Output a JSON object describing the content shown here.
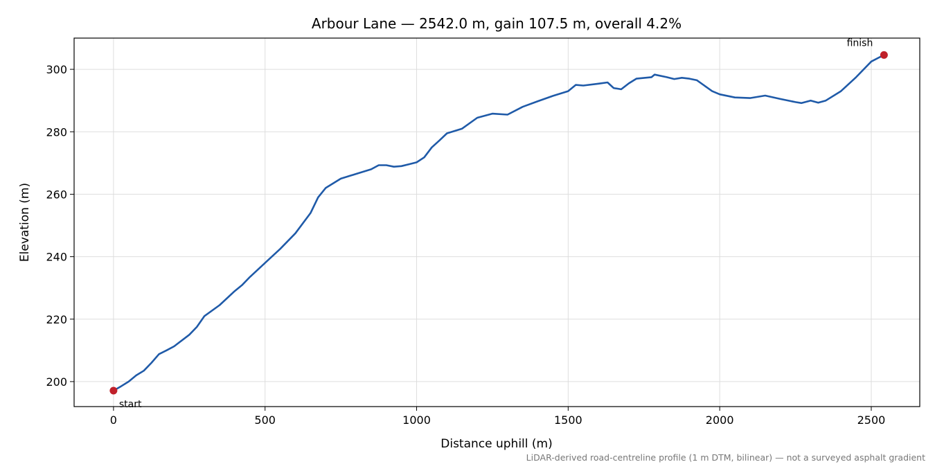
{
  "chart_data": {
    "type": "line",
    "title": "Arbour Lane — 2542.0 m, gain 107.5 m, overall 4.2%",
    "xlabel": "Distance uphill (m)",
    "ylabel": "Elevation (m)",
    "xlim": [
      -130,
      2660
    ],
    "ylim": [
      192,
      310
    ],
    "xticks": [
      0,
      500,
      1000,
      1500,
      2000,
      2500
    ],
    "yticks": [
      200,
      220,
      240,
      260,
      280,
      300
    ],
    "grid": true,
    "footnote": "LiDAR-derived road-centreline profile (1 m DTM, bilinear) — not a surveyed asphalt gradient",
    "line_color": "#1f5aa8",
    "marker_color": "#c0202a",
    "series": [
      {
        "x": [
          0,
          25,
          50,
          75,
          100,
          125,
          150,
          175,
          200,
          250,
          275,
          300,
          350,
          400,
          425,
          450,
          500,
          550,
          600,
          650,
          675,
          700,
          750,
          800,
          850,
          875,
          900,
          925,
          950,
          975,
          1000,
          1025,
          1050,
          1075,
          1100,
          1150,
          1200,
          1250,
          1300,
          1350,
          1400,
          1450,
          1500,
          1525,
          1550,
          1600,
          1630,
          1650,
          1675,
          1700,
          1725,
          1775,
          1785,
          1825,
          1850,
          1875,
          1900,
          1925,
          1975,
          2000,
          2050,
          2100,
          2150,
          2200,
          2250,
          2270,
          2300,
          2325,
          2350,
          2400,
          2450,
          2500,
          2542
        ],
        "y": [
          197.1,
          198.5,
          200.0,
          202.0,
          203.5,
          206.0,
          208.8,
          210.0,
          211.3,
          215.0,
          217.5,
          221.0,
          224.5,
          229.0,
          231.0,
          233.5,
          238.0,
          242.5,
          247.5,
          254.0,
          259.0,
          262.0,
          265.0,
          266.5,
          268.0,
          269.3,
          269.3,
          268.8,
          269.0,
          269.6,
          270.2,
          271.8,
          275.0,
          277.2,
          279.5,
          281.0,
          284.5,
          285.8,
          285.5,
          288.0,
          289.8,
          291.5,
          293.0,
          295.0,
          294.8,
          295.4,
          295.8,
          294.0,
          293.6,
          295.5,
          297.0,
          297.5,
          298.3,
          297.5,
          296.9,
          297.3,
          297.0,
          296.5,
          293.0,
          292.0,
          291.0,
          290.8,
          291.6,
          290.5,
          289.5,
          289.2,
          290.0,
          289.3,
          290.0,
          293.0,
          297.5,
          302.5,
          304.6
        ]
      }
    ],
    "annotations": [
      {
        "text": "start",
        "x": 0,
        "y": 197.1
      },
      {
        "text": "finish",
        "x": 2542,
        "y": 304.6
      }
    ]
  }
}
